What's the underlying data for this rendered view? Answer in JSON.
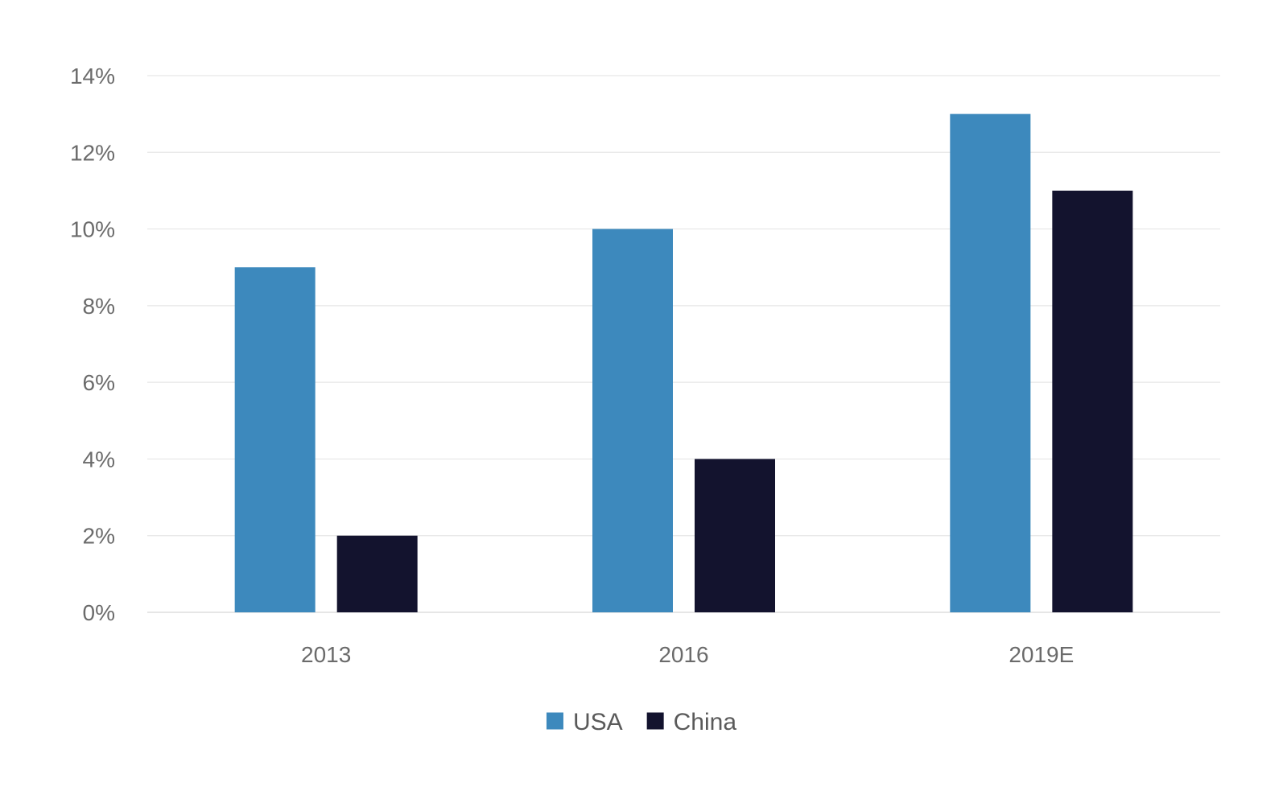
{
  "chart_data": {
    "type": "bar",
    "categories": [
      "2013",
      "2016",
      "2019E"
    ],
    "series": [
      {
        "name": "USA",
        "values": [
          9,
          10,
          13
        ],
        "color": "#3d89bd"
      },
      {
        "name": "China",
        "values": [
          2,
          4,
          11
        ],
        "color": "#13132e"
      }
    ],
    "y_ticks": [
      "0%",
      "2%",
      "4%",
      "6%",
      "8%",
      "10%",
      "12%",
      "14%"
    ],
    "ylim": [
      0,
      14
    ],
    "y_unit": "%",
    "grid": true,
    "legend_position": "bottom-center",
    "title": "",
    "xlabel": "",
    "ylabel": ""
  }
}
